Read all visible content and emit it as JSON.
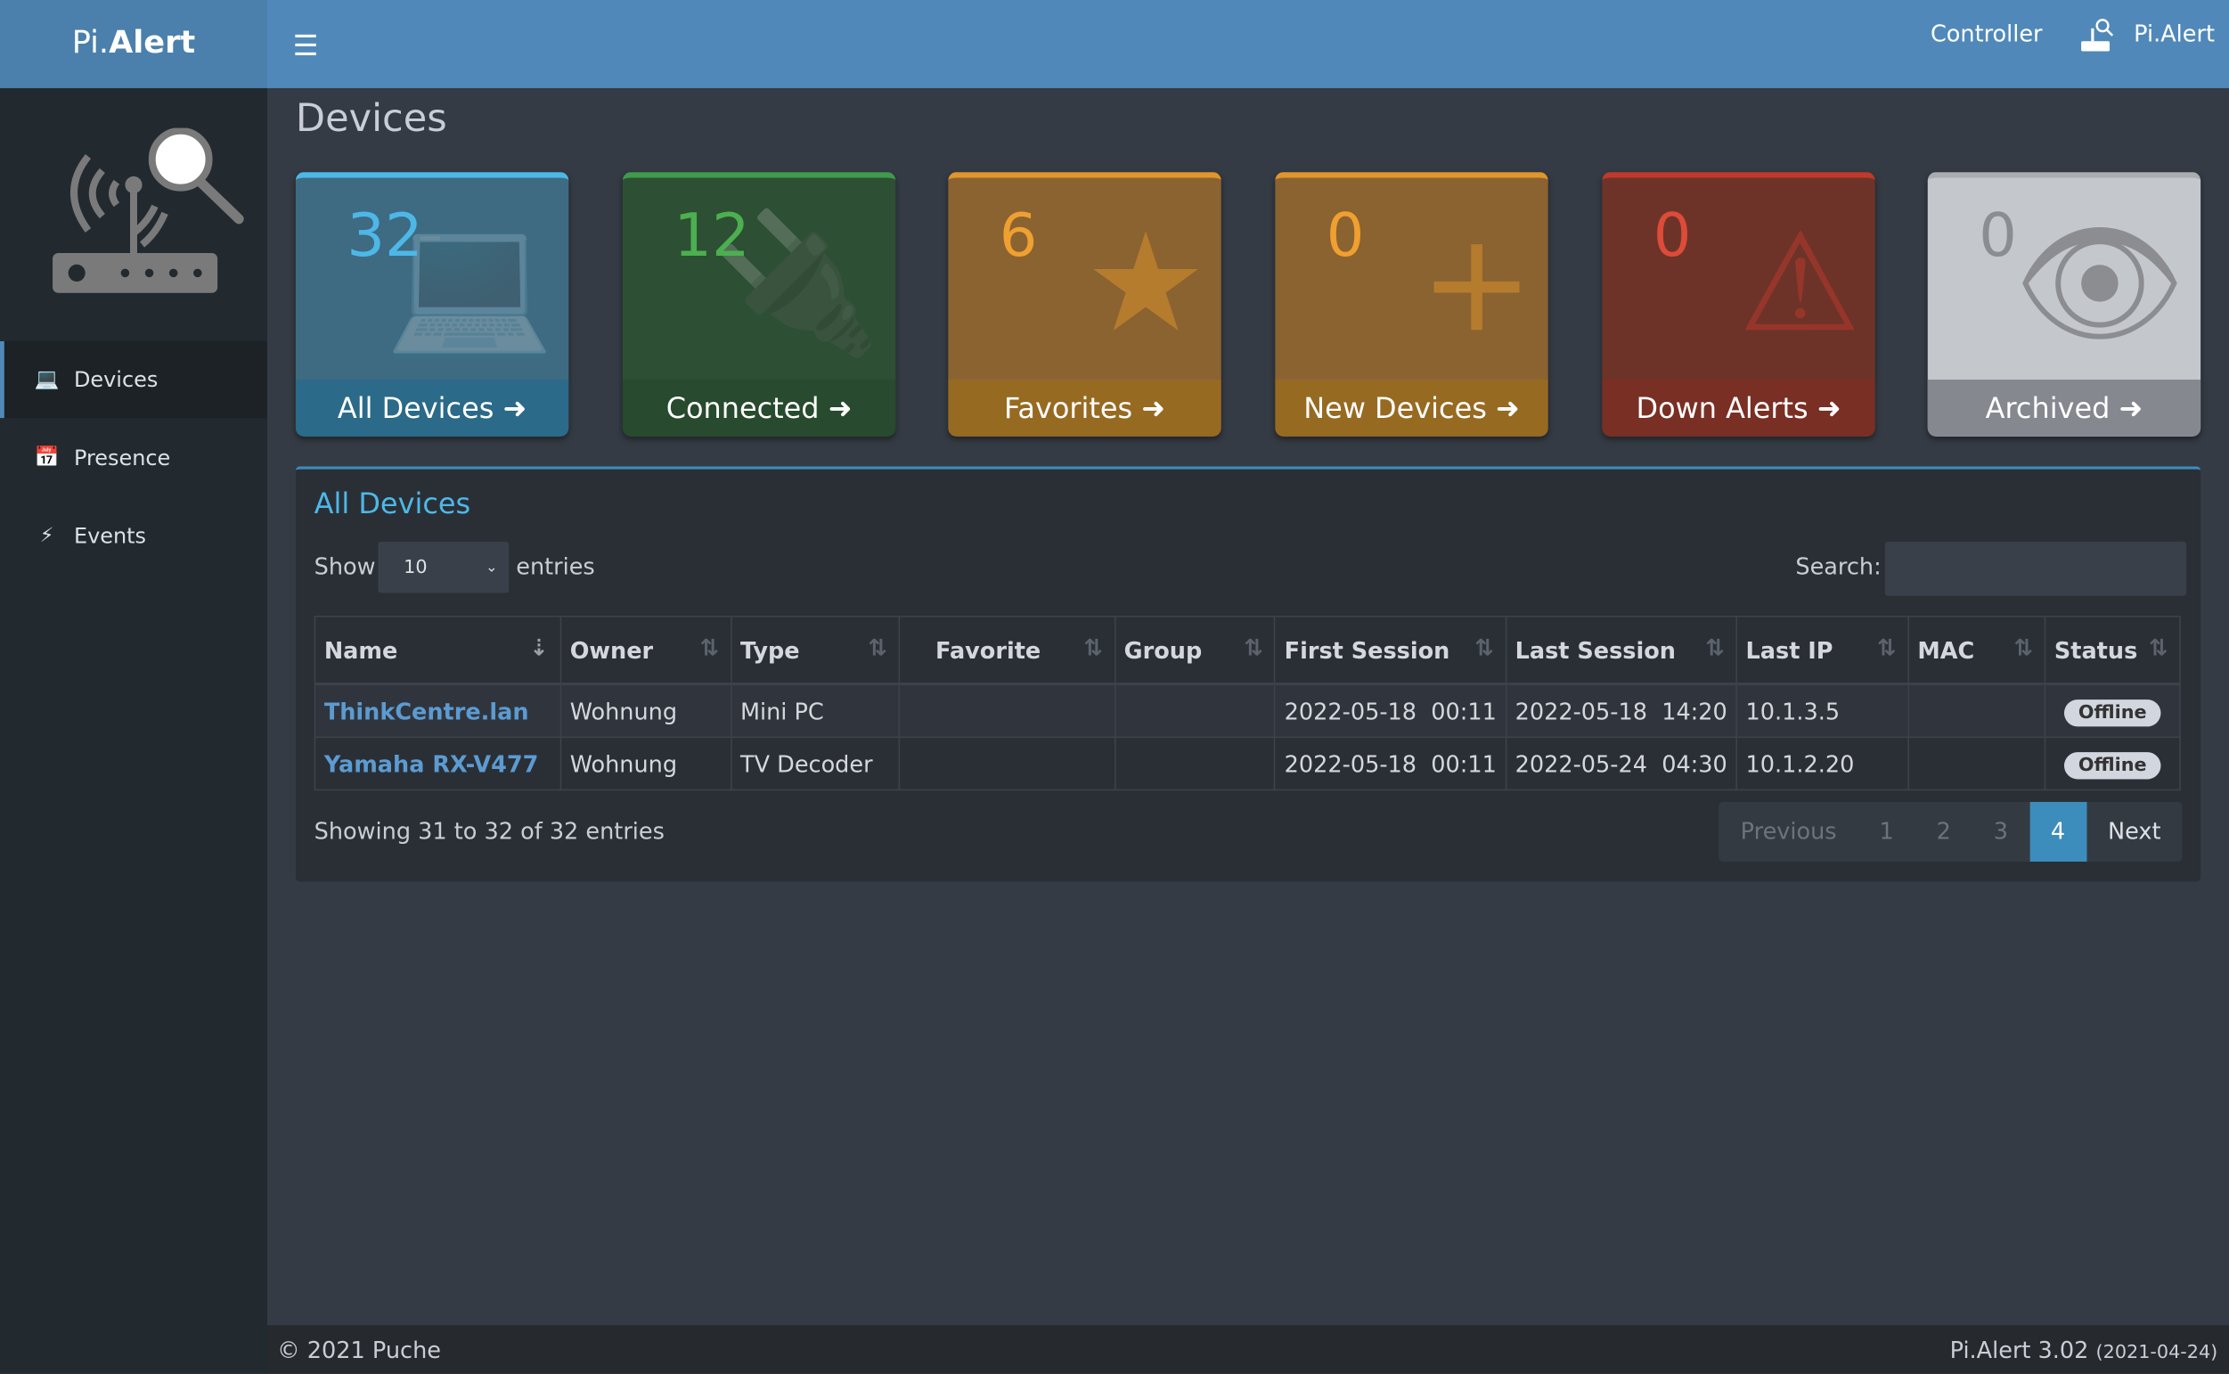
{
  "header": {
    "brand_light": "Pi.",
    "brand_bold": "Alert",
    "menu_icon": "hamburger-icon",
    "controller": "Controller",
    "user": "Pi.Alert",
    "user_icon": "router-icon",
    "accent": "#5089b9"
  },
  "sidebar": {
    "logo_icon": "router-search-icon",
    "items": [
      {
        "label": "Devices",
        "icon": "laptop-icon",
        "active": true
      },
      {
        "label": "Presence",
        "icon": "calendar-icon"
      },
      {
        "label": "Events",
        "icon": "bolt-icon"
      }
    ]
  },
  "page": {
    "title": "Devices"
  },
  "cards": [
    {
      "count": "32",
      "label": "All Devices",
      "icon": "laptop-icon",
      "color": "#4db8e8"
    },
    {
      "count": "12",
      "label": "Connected",
      "icon": "plug-icon",
      "color": "#4caf50"
    },
    {
      "count": "6",
      "label": "Favorites",
      "icon": "star-icon",
      "color": "#f0a030"
    },
    {
      "count": "0",
      "label": "New Devices",
      "icon": "plus-icon",
      "color": "#f0a030"
    },
    {
      "count": "0",
      "label": "Down Alerts",
      "icon": "warning-icon",
      "color": "#dd4b39"
    },
    {
      "count": "0",
      "label": "Archived",
      "icon": "eye-slash-icon",
      "color": "#888c92"
    }
  ],
  "table": {
    "title": "All Devices",
    "show": "Show",
    "page_size": "10",
    "entries": "entries",
    "search_label": "Search:",
    "search_value": "",
    "columns": [
      "Name",
      "Owner",
      "Type",
      "Favorite",
      "Group",
      "First Session",
      "Last Session",
      "Last IP",
      "MAC",
      "Status"
    ],
    "rows": [
      [
        "ThinkCentre.lan",
        "Wohnung",
        "Mini PC",
        "",
        "",
        "2022-05-18  00:11",
        "2022-05-18  14:20",
        "10.1.3.5",
        "",
        "Offline"
      ],
      [
        "Yamaha RX-V477",
        "Wohnung",
        "TV Decoder",
        "",
        "",
        "2022-05-18  00:11",
        "2022-05-24  04:30",
        "10.1.2.20",
        "",
        "Offline"
      ]
    ],
    "info": "Showing 31 to 32 of 32 entries",
    "pager": {
      "previous": "Previous",
      "pages": [
        "1",
        "2",
        "3",
        "4"
      ],
      "current": "4",
      "next": "Next"
    }
  },
  "footer": {
    "copyright": "© 2021 Puche",
    "version": "Pi.Alert  3.02",
    "date": "(2021-04-24)"
  }
}
